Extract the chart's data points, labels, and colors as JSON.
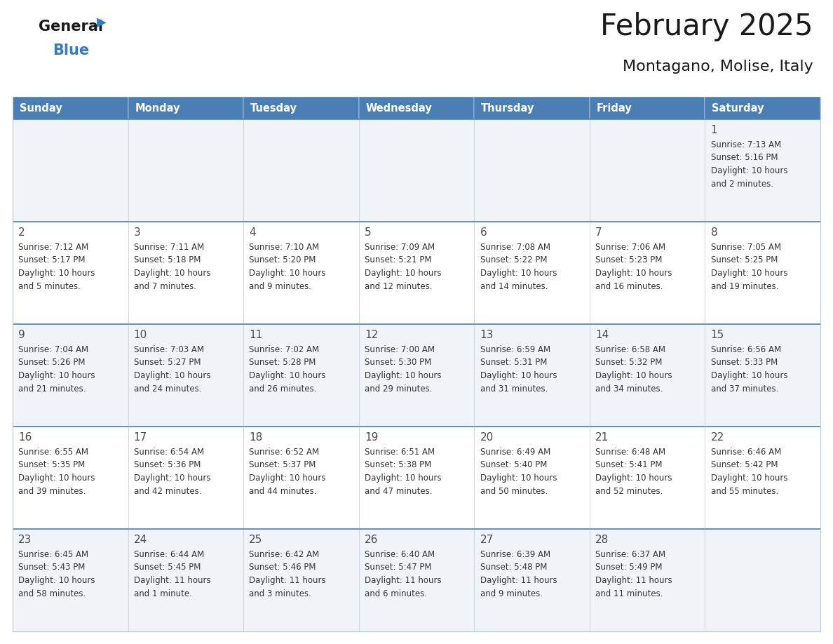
{
  "title": "February 2025",
  "subtitle": "Montagano, Molise, Italy",
  "header_bg": "#4a7fb5",
  "header_text_color": "#ffffff",
  "cell_bg_light": "#f0f4f8",
  "cell_bg_white": "#ffffff",
  "border_color": "#4a7fb5",
  "border_color_light": "#c0c8d0",
  "day_headers": [
    "Sunday",
    "Monday",
    "Tuesday",
    "Wednesday",
    "Thursday",
    "Friday",
    "Saturday"
  ],
  "title_color": "#1a1a1a",
  "subtitle_color": "#1a1a1a",
  "day_number_color": "#4a4a4a",
  "cell_text_color": "#333333",
  "weeks": [
    [
      {
        "day": 0,
        "text": ""
      },
      {
        "day": 0,
        "text": ""
      },
      {
        "day": 0,
        "text": ""
      },
      {
        "day": 0,
        "text": ""
      },
      {
        "day": 0,
        "text": ""
      },
      {
        "day": 0,
        "text": ""
      },
      {
        "day": 1,
        "text": "Sunrise: 7:13 AM\nSunset: 5:16 PM\nDaylight: 10 hours\nand 2 minutes."
      }
    ],
    [
      {
        "day": 2,
        "text": "Sunrise: 7:12 AM\nSunset: 5:17 PM\nDaylight: 10 hours\nand 5 minutes."
      },
      {
        "day": 3,
        "text": "Sunrise: 7:11 AM\nSunset: 5:18 PM\nDaylight: 10 hours\nand 7 minutes."
      },
      {
        "day": 4,
        "text": "Sunrise: 7:10 AM\nSunset: 5:20 PM\nDaylight: 10 hours\nand 9 minutes."
      },
      {
        "day": 5,
        "text": "Sunrise: 7:09 AM\nSunset: 5:21 PM\nDaylight: 10 hours\nand 12 minutes."
      },
      {
        "day": 6,
        "text": "Sunrise: 7:08 AM\nSunset: 5:22 PM\nDaylight: 10 hours\nand 14 minutes."
      },
      {
        "day": 7,
        "text": "Sunrise: 7:06 AM\nSunset: 5:23 PM\nDaylight: 10 hours\nand 16 minutes."
      },
      {
        "day": 8,
        "text": "Sunrise: 7:05 AM\nSunset: 5:25 PM\nDaylight: 10 hours\nand 19 minutes."
      }
    ],
    [
      {
        "day": 9,
        "text": "Sunrise: 7:04 AM\nSunset: 5:26 PM\nDaylight: 10 hours\nand 21 minutes."
      },
      {
        "day": 10,
        "text": "Sunrise: 7:03 AM\nSunset: 5:27 PM\nDaylight: 10 hours\nand 24 minutes."
      },
      {
        "day": 11,
        "text": "Sunrise: 7:02 AM\nSunset: 5:28 PM\nDaylight: 10 hours\nand 26 minutes."
      },
      {
        "day": 12,
        "text": "Sunrise: 7:00 AM\nSunset: 5:30 PM\nDaylight: 10 hours\nand 29 minutes."
      },
      {
        "day": 13,
        "text": "Sunrise: 6:59 AM\nSunset: 5:31 PM\nDaylight: 10 hours\nand 31 minutes."
      },
      {
        "day": 14,
        "text": "Sunrise: 6:58 AM\nSunset: 5:32 PM\nDaylight: 10 hours\nand 34 minutes."
      },
      {
        "day": 15,
        "text": "Sunrise: 6:56 AM\nSunset: 5:33 PM\nDaylight: 10 hours\nand 37 minutes."
      }
    ],
    [
      {
        "day": 16,
        "text": "Sunrise: 6:55 AM\nSunset: 5:35 PM\nDaylight: 10 hours\nand 39 minutes."
      },
      {
        "day": 17,
        "text": "Sunrise: 6:54 AM\nSunset: 5:36 PM\nDaylight: 10 hours\nand 42 minutes."
      },
      {
        "day": 18,
        "text": "Sunrise: 6:52 AM\nSunset: 5:37 PM\nDaylight: 10 hours\nand 44 minutes."
      },
      {
        "day": 19,
        "text": "Sunrise: 6:51 AM\nSunset: 5:38 PM\nDaylight: 10 hours\nand 47 minutes."
      },
      {
        "day": 20,
        "text": "Sunrise: 6:49 AM\nSunset: 5:40 PM\nDaylight: 10 hours\nand 50 minutes."
      },
      {
        "day": 21,
        "text": "Sunrise: 6:48 AM\nSunset: 5:41 PM\nDaylight: 10 hours\nand 52 minutes."
      },
      {
        "day": 22,
        "text": "Sunrise: 6:46 AM\nSunset: 5:42 PM\nDaylight: 10 hours\nand 55 minutes."
      }
    ],
    [
      {
        "day": 23,
        "text": "Sunrise: 6:45 AM\nSunset: 5:43 PM\nDaylight: 10 hours\nand 58 minutes."
      },
      {
        "day": 24,
        "text": "Sunrise: 6:44 AM\nSunset: 5:45 PM\nDaylight: 11 hours\nand 1 minute."
      },
      {
        "day": 25,
        "text": "Sunrise: 6:42 AM\nSunset: 5:46 PM\nDaylight: 11 hours\nand 3 minutes."
      },
      {
        "day": 26,
        "text": "Sunrise: 6:40 AM\nSunset: 5:47 PM\nDaylight: 11 hours\nand 6 minutes."
      },
      {
        "day": 27,
        "text": "Sunrise: 6:39 AM\nSunset: 5:48 PM\nDaylight: 11 hours\nand 9 minutes."
      },
      {
        "day": 28,
        "text": "Sunrise: 6:37 AM\nSunset: 5:49 PM\nDaylight: 11 hours\nand 11 minutes."
      },
      {
        "day": 0,
        "text": ""
      }
    ]
  ],
  "logo_general_color": "#1a1a1a",
  "logo_blue_color": "#3a7abf",
  "fig_width": 11.88,
  "fig_height": 9.18,
  "dpi": 100
}
